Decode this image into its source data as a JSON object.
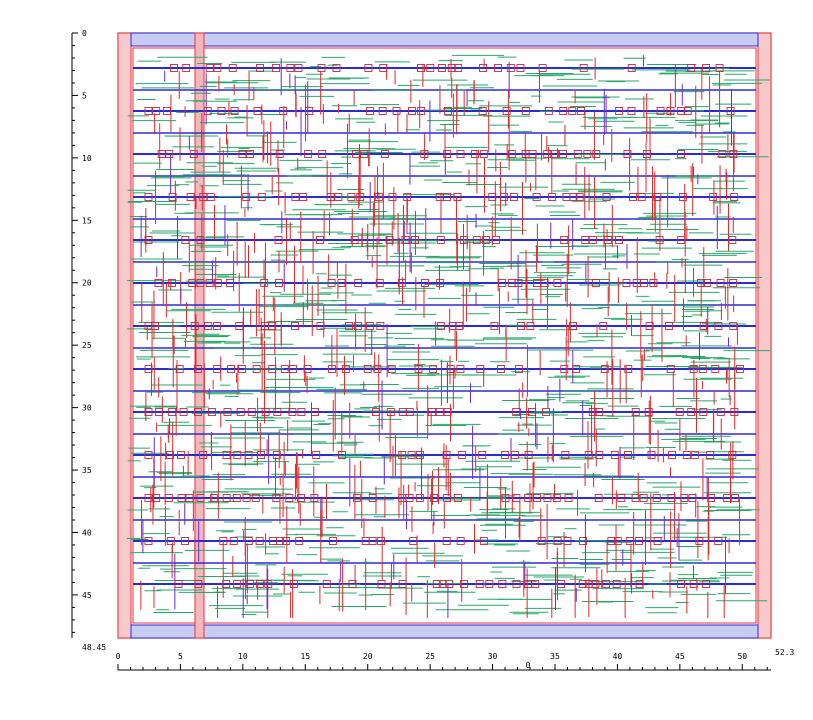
{
  "viewer": {
    "x_axis": {
      "min": 0,
      "max": 52.3,
      "tick_labels": [
        "0",
        "5",
        "10",
        "15",
        "20",
        "25",
        "30",
        "35",
        "40",
        "45",
        "50"
      ],
      "end_label": "52.3",
      "mid_label": "0"
    },
    "y_axis": {
      "min": 0,
      "max": 48.45,
      "tick_labels": [
        "0",
        "5",
        "10",
        "15",
        "20",
        "25",
        "30",
        "35",
        "40",
        "45"
      ],
      "end_label": "48.45"
    },
    "colors": {
      "boundary": "#e8323c",
      "power_rail": "#2b2bd6",
      "via_pad": "#c8283c",
      "metal_h": "#2aa86a",
      "metal_v": "#e02828",
      "metal_v2": "#6a2ad0",
      "background": "#ffffff"
    }
  }
}
